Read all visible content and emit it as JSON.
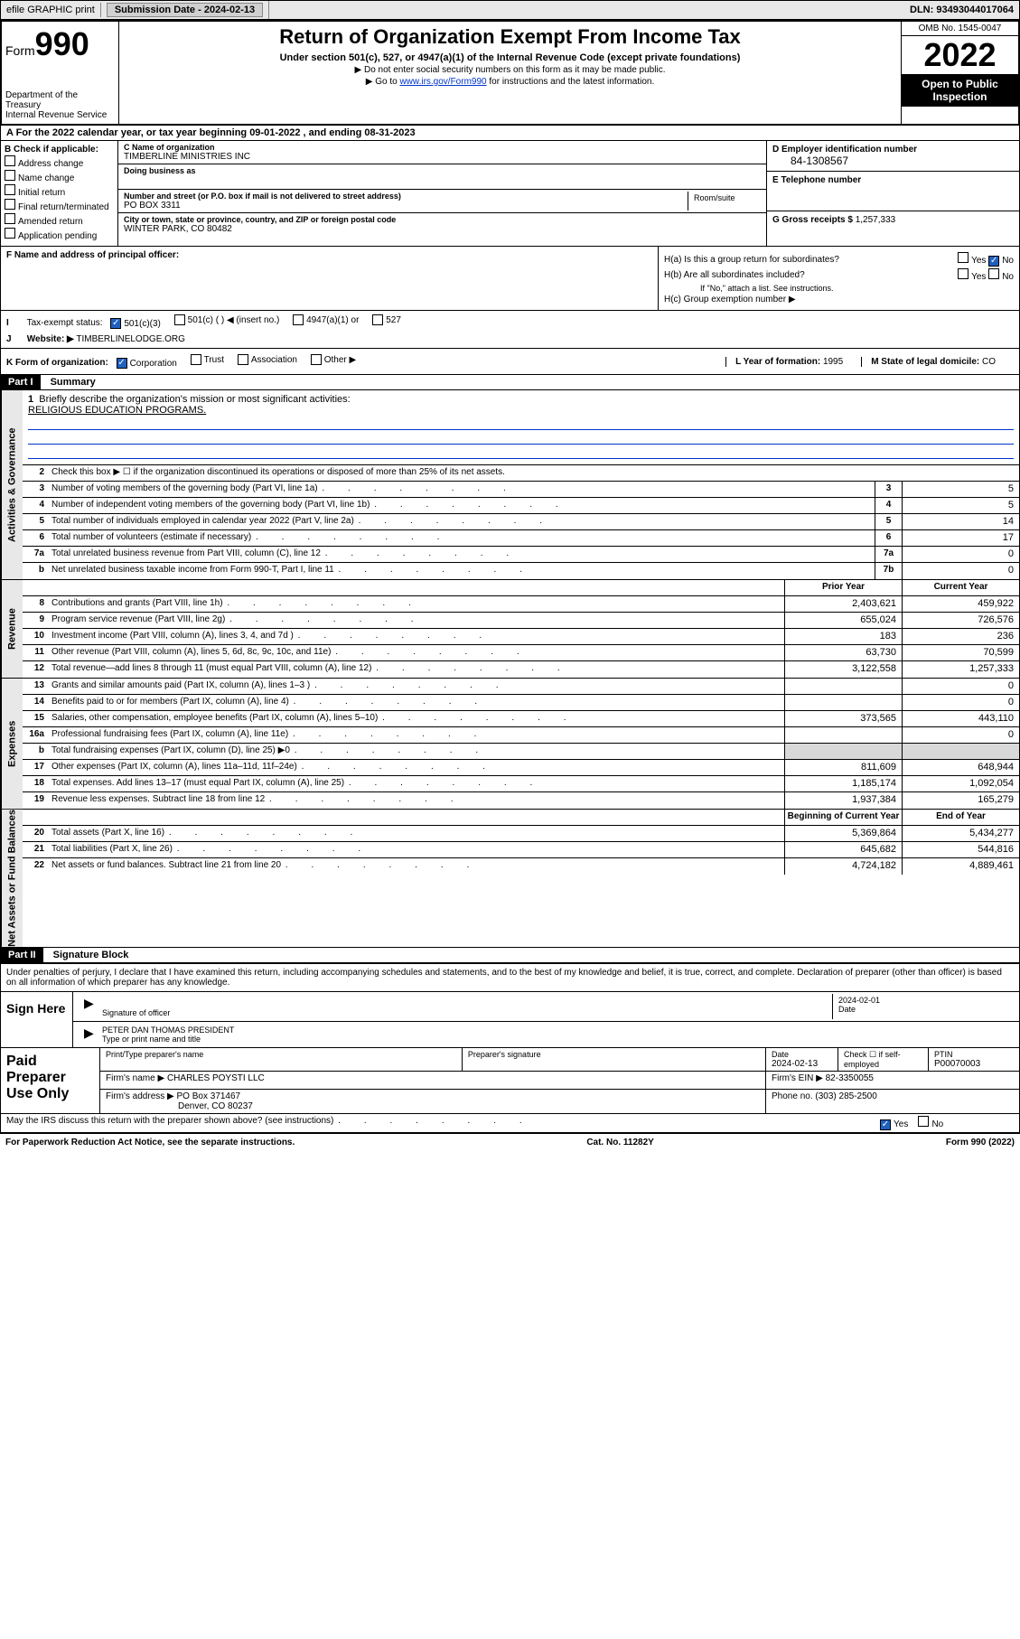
{
  "top_bar": {
    "efile": "efile GRAPHIC print",
    "submission_label": "Submission Date - 2024-02-13",
    "dln": "DLN: 93493044017064"
  },
  "header": {
    "form_label": "Form",
    "form_number": "990",
    "dept": "Department of the Treasury",
    "irs": "Internal Revenue Service",
    "title": "Return of Organization Exempt From Income Tax",
    "subtitle": "Under section 501(c), 527, or 4947(a)(1) of the Internal Revenue Code (except private foundations)",
    "note1": "▶ Do not enter social security numbers on this form as it may be made public.",
    "note2_pre": "▶ Go to ",
    "note2_link": "www.irs.gov/Form990",
    "note2_post": " for instructions and the latest information.",
    "omb": "OMB No. 1545-0047",
    "year": "2022",
    "open_public": "Open to Public Inspection"
  },
  "section_a": "A For the 2022 calendar year, or tax year beginning 09-01-2022   , and ending 08-31-2023",
  "section_b": {
    "title": "B Check if applicable:",
    "opts": [
      "Address change",
      "Name change",
      "Initial return",
      "Final return/terminated",
      "Amended return",
      "Application pending"
    ]
  },
  "section_c": {
    "name_label": "C Name of organization",
    "name": "TIMBERLINE MINISTRIES INC",
    "dba_label": "Doing business as",
    "dba": "",
    "addr_label": "Number and street (or P.O. box if mail is not delivered to street address)",
    "room_label": "Room/suite",
    "addr": "PO BOX 3311",
    "city_label": "City or town, state or province, country, and ZIP or foreign postal code",
    "city": "WINTER PARK, CO  80482"
  },
  "section_d": {
    "label": "D Employer identification number",
    "value": "84-1308567"
  },
  "section_e": {
    "label": "E Telephone number",
    "value": ""
  },
  "section_g": {
    "label": "G Gross receipts $",
    "value": "1,257,333"
  },
  "section_f": {
    "label": "F  Name and address of principal officer:",
    "value": ""
  },
  "section_h": {
    "ha": "H(a)  Is this a group return for subordinates?",
    "hb": "H(b)  Are all subordinates included?",
    "hb_note": "If \"No,\" attach a list. See instructions.",
    "hc": "H(c)  Group exemption number ▶",
    "yes": "Yes",
    "no": "No"
  },
  "section_i": {
    "label": "Tax-exempt status:",
    "opts": [
      "501(c)(3)",
      "501(c) (  ) ◀ (insert no.)",
      "4947(a)(1) or",
      "527"
    ]
  },
  "section_j": {
    "label": "Website: ▶",
    "value": "TIMBERLINELODGE.ORG"
  },
  "section_k": {
    "label": "K Form of organization:",
    "opts": [
      "Corporation",
      "Trust",
      "Association",
      "Other ▶"
    ]
  },
  "section_l": {
    "label": "L Year of formation:",
    "value": "1995"
  },
  "section_m": {
    "label": "M State of legal domicile:",
    "value": "CO"
  },
  "part1": {
    "header": "Part I",
    "title": "Summary",
    "briefly_label": "Briefly describe the organization's mission or most significant activities:",
    "briefly_text": "RELIGIOUS EDUCATION PROGRAMS.",
    "line2": "Check this box ▶ ☐  if the organization discontinued its operations or disposed of more than 25% of its net assets.",
    "sections": {
      "governance": "Activities & Governance",
      "revenue": "Revenue",
      "expenses": "Expenses",
      "netassets": "Net Assets or Fund Balances"
    },
    "col_prior": "Prior Year",
    "col_current": "Current Year",
    "col_begin": "Beginning of Current Year",
    "col_end": "End of Year",
    "lines_gov": [
      {
        "n": "3",
        "d": "Number of voting members of the governing body (Part VI, line 1a)",
        "box": "3",
        "v": "5"
      },
      {
        "n": "4",
        "d": "Number of independent voting members of the governing body (Part VI, line 1b)",
        "box": "4",
        "v": "5"
      },
      {
        "n": "5",
        "d": "Total number of individuals employed in calendar year 2022 (Part V, line 2a)",
        "box": "5",
        "v": "14"
      },
      {
        "n": "6",
        "d": "Total number of volunteers (estimate if necessary)",
        "box": "6",
        "v": "17"
      },
      {
        "n": "7a",
        "d": "Total unrelated business revenue from Part VIII, column (C), line 12",
        "box": "7a",
        "v": "0"
      },
      {
        "n": "b",
        "d": "Net unrelated business taxable income from Form 990-T, Part I, line 11",
        "box": "7b",
        "v": "0"
      }
    ],
    "lines_rev": [
      {
        "n": "8",
        "d": "Contributions and grants (Part VIII, line 1h)",
        "p": "2,403,621",
        "c": "459,922"
      },
      {
        "n": "9",
        "d": "Program service revenue (Part VIII, line 2g)",
        "p": "655,024",
        "c": "726,576"
      },
      {
        "n": "10",
        "d": "Investment income (Part VIII, column (A), lines 3, 4, and 7d )",
        "p": "183",
        "c": "236"
      },
      {
        "n": "11",
        "d": "Other revenue (Part VIII, column (A), lines 5, 6d, 8c, 9c, 10c, and 11e)",
        "p": "63,730",
        "c": "70,599"
      },
      {
        "n": "12",
        "d": "Total revenue—add lines 8 through 11 (must equal Part VIII, column (A), line 12)",
        "p": "3,122,558",
        "c": "1,257,333"
      }
    ],
    "lines_exp": [
      {
        "n": "13",
        "d": "Grants and similar amounts paid (Part IX, column (A), lines 1–3 )",
        "p": "",
        "c": "0"
      },
      {
        "n": "14",
        "d": "Benefits paid to or for members (Part IX, column (A), line 4)",
        "p": "",
        "c": "0"
      },
      {
        "n": "15",
        "d": "Salaries, other compensation, employee benefits (Part IX, column (A), lines 5–10)",
        "p": "373,565",
        "c": "443,110"
      },
      {
        "n": "16a",
        "d": "Professional fundraising fees (Part IX, column (A), line 11e)",
        "p": "",
        "c": "0"
      },
      {
        "n": "b",
        "d": "Total fundraising expenses (Part IX, column (D), line 25) ▶0",
        "p": "",
        "c": "",
        "shaded": true
      },
      {
        "n": "17",
        "d": "Other expenses (Part IX, column (A), lines 11a–11d, 11f–24e)",
        "p": "811,609",
        "c": "648,944"
      },
      {
        "n": "18",
        "d": "Total expenses. Add lines 13–17 (must equal Part IX, column (A), line 25)",
        "p": "1,185,174",
        "c": "1,092,054"
      },
      {
        "n": "19",
        "d": "Revenue less expenses. Subtract line 18 from line 12",
        "p": "1,937,384",
        "c": "165,279"
      }
    ],
    "lines_net": [
      {
        "n": "20",
        "d": "Total assets (Part X, line 16)",
        "p": "5,369,864",
        "c": "5,434,277"
      },
      {
        "n": "21",
        "d": "Total liabilities (Part X, line 26)",
        "p": "645,682",
        "c": "544,816"
      },
      {
        "n": "22",
        "d": "Net assets or fund balances. Subtract line 21 from line 20",
        "p": "4,724,182",
        "c": "4,889,461"
      }
    ]
  },
  "part2": {
    "header": "Part II",
    "title": "Signature Block",
    "intro": "Under penalties of perjury, I declare that I have examined this return, including accompanying schedules and statements, and to the best of my knowledge and belief, it is true, correct, and complete. Declaration of preparer (other than officer) is based on all information of which preparer has any knowledge.",
    "sign_here": "Sign Here",
    "sig_officer": "Signature of officer",
    "sig_date": "Date",
    "sig_date_val": "2024-02-01",
    "officer_name": "PETER DAN THOMAS  PRESIDENT",
    "type_name": "Type or print name and title",
    "paid_prep": "Paid Preparer Use Only",
    "prep_name_label": "Print/Type preparer's name",
    "prep_sig_label": "Preparer's signature",
    "prep_date_label": "Date",
    "prep_date": "2024-02-13",
    "check_self": "Check ☐ if self-employed",
    "ptin_label": "PTIN",
    "ptin": "P00070003",
    "firm_name_label": "Firm's name     ▶",
    "firm_name": "CHARLES POYSTI LLC",
    "firm_ein_label": "Firm's EIN ▶",
    "firm_ein": "82-3350055",
    "firm_addr_label": "Firm's address ▶",
    "firm_addr1": "PO Box 371467",
    "firm_addr2": "Denver, CO  80237",
    "phone_label": "Phone no.",
    "phone": "(303) 285-2500",
    "discuss": "May the IRS discuss this return with the preparer shown above? (see instructions)",
    "yes": "Yes",
    "no": "No"
  },
  "footer": {
    "left": "For Paperwork Reduction Act Notice, see the separate instructions.",
    "center": "Cat. No. 11282Y",
    "right": "Form 990 (2022)"
  }
}
